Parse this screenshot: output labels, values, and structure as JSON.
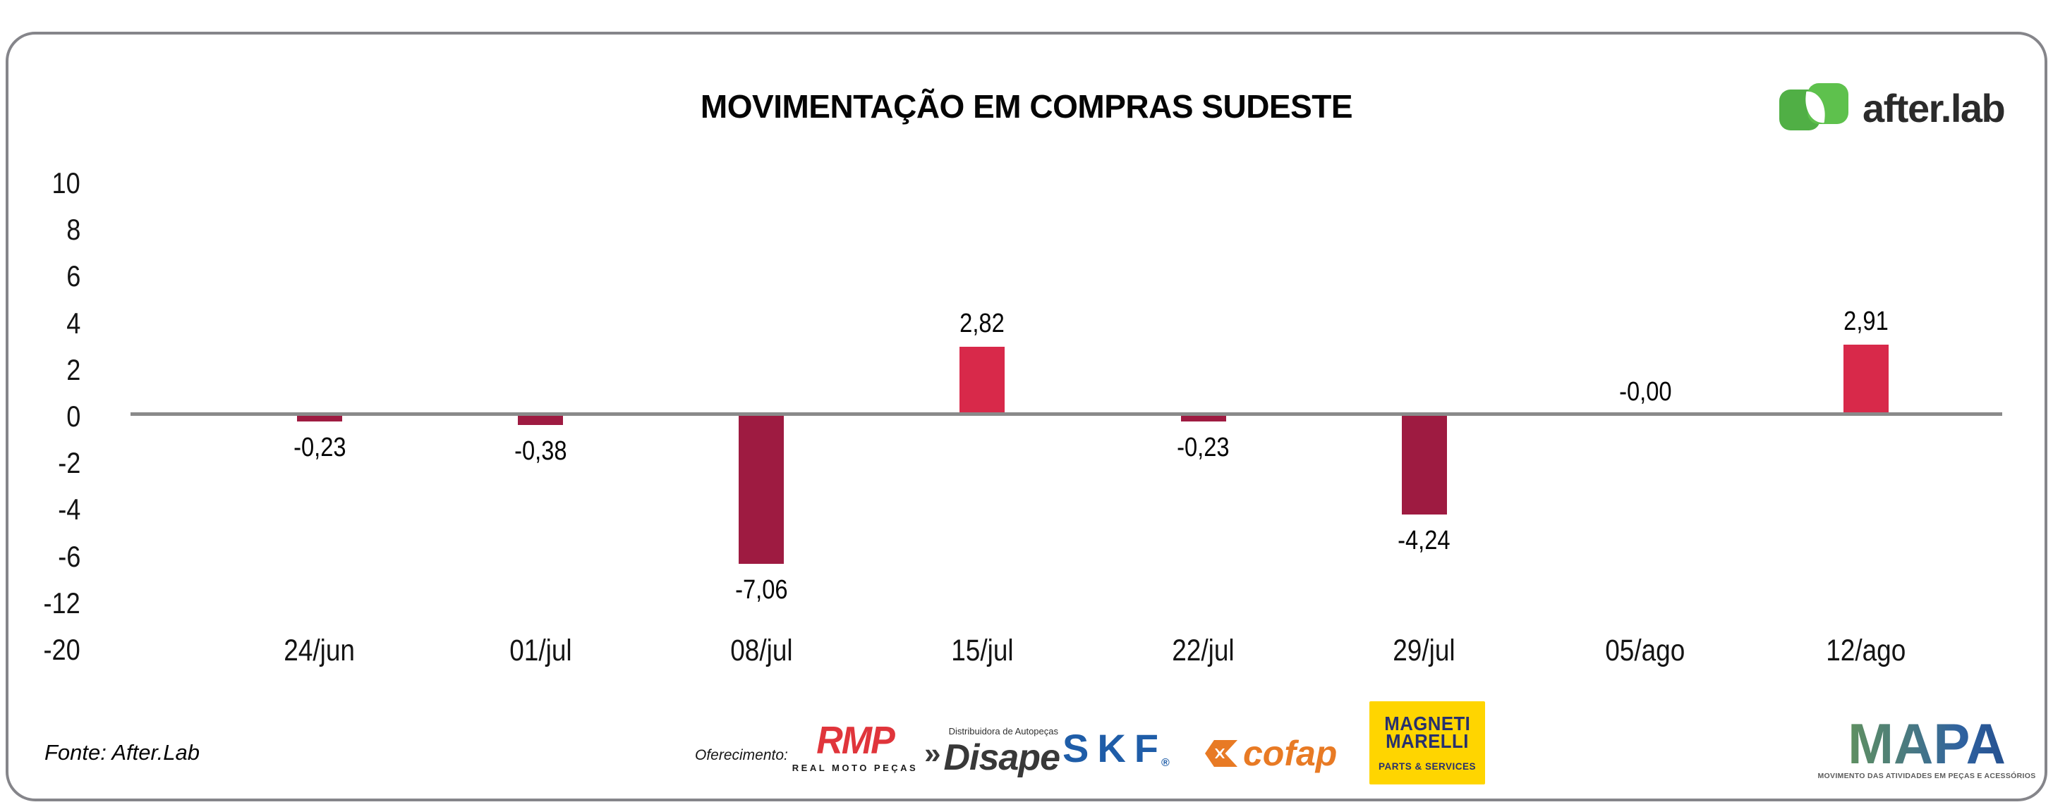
{
  "card": {
    "source": "Fonte: After.Lab",
    "sponsor_label": "Oferecimento:"
  },
  "brand": {
    "name": "after.lab",
    "icon_green_dark": "#50af45",
    "icon_green_light": "#5ec14d"
  },
  "chart_data": {
    "type": "bar",
    "title": "MOVIMENTAÇÃO EM COMPRAS SUDESTE",
    "categories": [
      "24/jun",
      "01/jul",
      "08/jul",
      "15/jul",
      "22/jul",
      "29/jul",
      "05/ago",
      "12/ago"
    ],
    "values": [
      -0.23,
      -0.38,
      -7.06,
      2.82,
      -0.23,
      -4.24,
      -0.0,
      2.91
    ],
    "value_labels": [
      "-0,23",
      "-0,38",
      "-7,06",
      "2,82",
      "-0,23",
      "-4,24",
      "-0,00",
      "2,91"
    ],
    "y_ticks": [
      10,
      8,
      6,
      4,
      2,
      0,
      -2,
      -4,
      -6,
      -12,
      -20
    ],
    "ylim": [
      -20,
      10
    ],
    "grid": false,
    "zero_line": true,
    "legend": "none",
    "colors": {
      "positive": "#d8294a",
      "negative": "#9e1b41",
      "axis_line": "#8a8a8a",
      "text": "#141414"
    }
  },
  "sponsors": {
    "rmp": {
      "name": "RMP",
      "sub": "REAL MOTO PEÇAS",
      "color": "#e0353b"
    },
    "disape": {
      "mark": "»",
      "name": "Disape",
      "sub": "Distribuidora de Autopeças",
      "color": "#383838"
    },
    "skf": {
      "name": "SKF",
      "reg": "®",
      "color": "#1f5da8"
    },
    "cofap": {
      "name": "cofap",
      "color": "#e87a24"
    },
    "magneti_marelli": {
      "line1": "MAGNETI",
      "line2": "MARELLI",
      "sub": "PARTS & SERVICES",
      "bg": "#ffd500",
      "fg": "#27306e"
    },
    "mapa": {
      "name": "MAPA",
      "sub": "MOVIMENTO DAS ATIVIDADES EM PEÇAS E ACESSÓRIOS"
    }
  }
}
